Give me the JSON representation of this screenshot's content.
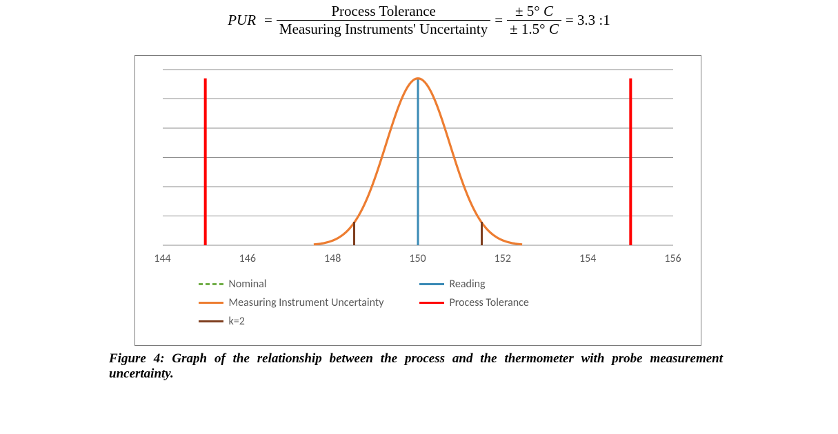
{
  "equation": {
    "lhs": "PUR",
    "eq": "=",
    "frac1_num": "Process Tolerance",
    "frac1_den": "Measuring Instruments' Uncertainty",
    "frac2_num": "± 5°",
    "frac2_den": "± 1.5°",
    "unit": "C",
    "result": "= 3.3 :1"
  },
  "chart": {
    "type": "line",
    "xlim": [
      144,
      156
    ],
    "ylim": [
      0,
      6
    ],
    "xticks": [
      144,
      146,
      148,
      150,
      152,
      154,
      156
    ],
    "grid_ylines": [
      0,
      1,
      2,
      3,
      4,
      5,
      6
    ],
    "background_color": "#ffffff",
    "border_color": "#7a7a7a",
    "grid_color": "#8c8c8c",
    "tick_font_color": "#595959",
    "tick_fontsize": 16,
    "series": {
      "nominal": {
        "label": "Nominal",
        "color": "#70ad47",
        "style": "dashed",
        "width": 3
      },
      "reading": {
        "label": "Reading",
        "color": "#3a8ab5",
        "width": 3,
        "x1": 150,
        "y1": 0,
        "x2": 150,
        "y2": 5.7
      },
      "miu": {
        "label": "Measuring Instrument Uncertainty",
        "color": "#ed7d31",
        "width": 3.2,
        "mu": 150,
        "sigma": 0.75,
        "amp": 5.7
      },
      "tolerance": {
        "label": "Process Tolerance",
        "color": "#ff0000",
        "width": 4,
        "lines": [
          {
            "x": 145,
            "y1": 0,
            "y2": 5.7
          },
          {
            "x": 155,
            "y1": 0,
            "y2": 5.7
          }
        ]
      },
      "k2": {
        "label": "k=2",
        "color": "#7f3f1f",
        "width": 3,
        "lines": [
          {
            "x": 148.5,
            "y1": 0,
            "y2": 0.8
          },
          {
            "x": 151.5,
            "y1": 0,
            "y2": 0.8
          }
        ]
      }
    }
  },
  "caption": "Figure 4: Graph of the relationship between the process and the thermometer with probe measurement uncertainty."
}
